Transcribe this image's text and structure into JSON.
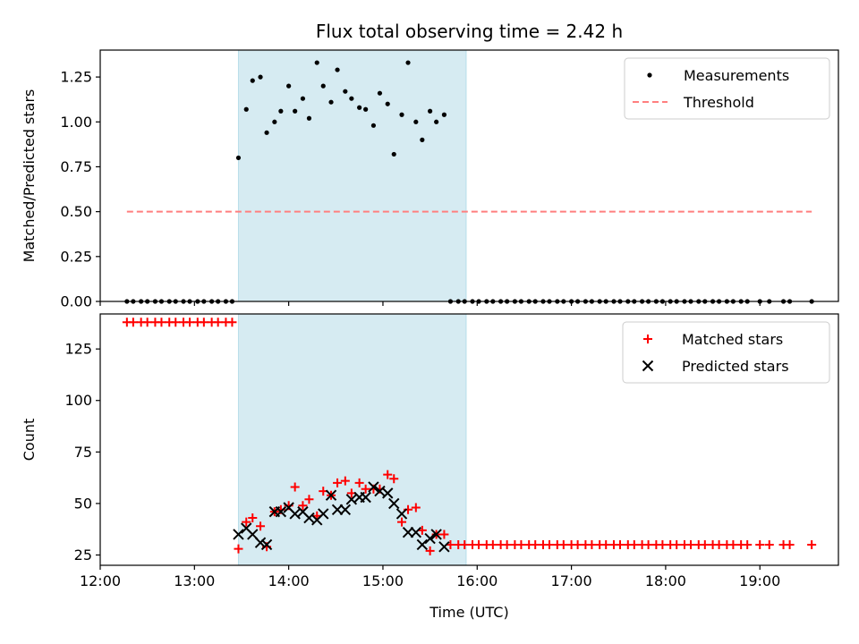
{
  "chart_data": [
    {
      "type": "scatter",
      "title": "Flux total observing time = 2.42 h",
      "xlabel": "",
      "ylabel": "Matched/Predicted stars",
      "xlim": [
        "12:00",
        "19:50"
      ],
      "ylim": [
        0,
        1.4
      ],
      "xticks": [
        "12:00",
        "13:00",
        "14:00",
        "15:00",
        "16:00",
        "17:00",
        "18:00",
        "19:00"
      ],
      "yticks": [
        "0.00",
        "0.25",
        "0.50",
        "0.75",
        "1.00",
        "1.25"
      ],
      "shaded_span": [
        "13:28",
        "15:53"
      ],
      "legend_position": "top-right",
      "colors": {
        "measurements": "#000000",
        "threshold": "#ff7f7f",
        "shade": "#add8e6"
      },
      "series": [
        {
          "name": "Measurements",
          "marker": "dot",
          "points": [
            [
              "12:17",
              0
            ],
            [
              "12:21",
              0
            ],
            [
              "12:26",
              0
            ],
            [
              "12:30",
              0
            ],
            [
              "12:35",
              0
            ],
            [
              "12:39",
              0
            ],
            [
              "12:44",
              0
            ],
            [
              "12:48",
              0
            ],
            [
              "12:53",
              0
            ],
            [
              "12:57",
              0
            ],
            [
              "13:02",
              0
            ],
            [
              "13:06",
              0
            ],
            [
              "13:11",
              0
            ],
            [
              "13:15",
              0
            ],
            [
              "13:20",
              0
            ],
            [
              "13:24",
              0
            ],
            [
              "13:28",
              0.8
            ],
            [
              "13:33",
              1.07
            ],
            [
              "13:37",
              1.23
            ],
            [
              "13:42",
              1.25
            ],
            [
              "13:46",
              0.94
            ],
            [
              "13:51",
              1.0
            ],
            [
              "13:55",
              1.06
            ],
            [
              "14:00",
              1.2
            ],
            [
              "14:04",
              1.06
            ],
            [
              "14:09",
              1.13
            ],
            [
              "14:13",
              1.02
            ],
            [
              "14:18",
              1.33
            ],
            [
              "14:22",
              1.2
            ],
            [
              "14:27",
              1.11
            ],
            [
              "14:31",
              1.29
            ],
            [
              "14:36",
              1.17
            ],
            [
              "14:40",
              1.13
            ],
            [
              "14:45",
              1.08
            ],
            [
              "14:49",
              1.07
            ],
            [
              "14:54",
              0.98
            ],
            [
              "14:58",
              1.16
            ],
            [
              "15:03",
              1.1
            ],
            [
              "15:07",
              0.82
            ],
            [
              "15:12",
              1.04
            ],
            [
              "15:16",
              1.33
            ],
            [
              "15:21",
              1.0
            ],
            [
              "15:25",
              0.9
            ],
            [
              "15:30",
              1.06
            ],
            [
              "15:34",
              1.0
            ],
            [
              "15:39",
              1.04
            ],
            [
              "15:43",
              0
            ],
            [
              "15:48",
              0
            ],
            [
              "15:52",
              0
            ],
            [
              "15:57",
              0
            ],
            [
              "16:01",
              0
            ],
            [
              "16:06",
              0
            ],
            [
              "16:10",
              0
            ],
            [
              "16:15",
              0
            ],
            [
              "16:19",
              0
            ],
            [
              "16:24",
              0
            ],
            [
              "16:28",
              0
            ],
            [
              "16:33",
              0
            ],
            [
              "16:37",
              0
            ],
            [
              "16:42",
              0
            ],
            [
              "16:46",
              0
            ],
            [
              "16:51",
              0
            ],
            [
              "16:55",
              0
            ],
            [
              "17:00",
              0
            ],
            [
              "17:04",
              0
            ],
            [
              "17:09",
              0
            ],
            [
              "17:13",
              0
            ],
            [
              "17:18",
              0
            ],
            [
              "17:22",
              0
            ],
            [
              "17:27",
              0
            ],
            [
              "17:31",
              0
            ],
            [
              "17:36",
              0
            ],
            [
              "17:40",
              0
            ],
            [
              "17:45",
              0
            ],
            [
              "17:49",
              0
            ],
            [
              "17:54",
              0
            ],
            [
              "17:58",
              0
            ],
            [
              "18:03",
              0
            ],
            [
              "18:07",
              0
            ],
            [
              "18:12",
              0
            ],
            [
              "18:16",
              0
            ],
            [
              "18:21",
              0
            ],
            [
              "18:25",
              0
            ],
            [
              "18:30",
              0
            ],
            [
              "18:34",
              0
            ],
            [
              "18:39",
              0
            ],
            [
              "18:43",
              0
            ],
            [
              "18:48",
              0
            ],
            [
              "18:52",
              0
            ],
            [
              "19:00",
              0
            ],
            [
              "19:06",
              0
            ],
            [
              "19:15",
              0
            ],
            [
              "19:19",
              0
            ],
            [
              "19:33",
              0
            ]
          ]
        },
        {
          "name": "Threshold",
          "style": "dashed",
          "points": [
            [
              "12:17",
              0.5
            ],
            [
              "19:33",
              0.5
            ]
          ]
        }
      ]
    },
    {
      "type": "scatter",
      "title": "",
      "xlabel": "Time (UTC)",
      "ylabel": "Count",
      "xlim": [
        "12:00",
        "19:50"
      ],
      "ylim": [
        20,
        142
      ],
      "xticks": [
        "12:00",
        "13:00",
        "14:00",
        "15:00",
        "16:00",
        "17:00",
        "18:00",
        "19:00"
      ],
      "yticks": [
        "25",
        "50",
        "75",
        "100",
        "125"
      ],
      "shaded_span": [
        "13:28",
        "15:53"
      ],
      "legend_position": "top-right",
      "colors": {
        "matched": "#ff0000",
        "predicted": "#000000",
        "shade": "#add8e6"
      },
      "series": [
        {
          "name": "Matched stars",
          "marker": "plus",
          "points": [
            [
              "12:17",
              138
            ],
            [
              "12:21",
              138
            ],
            [
              "12:26",
              138
            ],
            [
              "12:30",
              138
            ],
            [
              "12:35",
              138
            ],
            [
              "12:39",
              138
            ],
            [
              "12:44",
              138
            ],
            [
              "12:48",
              138
            ],
            [
              "12:53",
              138
            ],
            [
              "12:57",
              138
            ],
            [
              "13:02",
              138
            ],
            [
              "13:06",
              138
            ],
            [
              "13:11",
              138
            ],
            [
              "13:15",
              138
            ],
            [
              "13:20",
              138
            ],
            [
              "13:24",
              138
            ],
            [
              "13:28",
              28
            ],
            [
              "13:33",
              41
            ],
            [
              "13:37",
              43
            ],
            [
              "13:42",
              39
            ],
            [
              "13:46",
              29
            ],
            [
              "13:51",
              46
            ],
            [
              "13:55",
              47
            ],
            [
              "14:00",
              49
            ],
            [
              "14:04",
              58
            ],
            [
              "14:09",
              49
            ],
            [
              "14:13",
              52
            ],
            [
              "14:18",
              44
            ],
            [
              "14:22",
              56
            ],
            [
              "14:27",
              54
            ],
            [
              "14:31",
              60
            ],
            [
              "14:36",
              61
            ],
            [
              "14:40",
              55
            ],
            [
              "14:45",
              60
            ],
            [
              "14:49",
              57
            ],
            [
              "14:54",
              57
            ],
            [
              "14:58",
              57
            ],
            [
              "15:03",
              64
            ],
            [
              "15:07",
              62
            ],
            [
              "15:12",
              41
            ],
            [
              "15:16",
              47
            ],
            [
              "15:21",
              48
            ],
            [
              "15:25",
              37
            ],
            [
              "15:30",
              27
            ],
            [
              "15:34",
              35
            ],
            [
              "15:39",
              35
            ],
            [
              "15:43",
              30
            ],
            [
              "15:48",
              30
            ],
            [
              "15:52",
              30
            ],
            [
              "15:57",
              30
            ],
            [
              "16:01",
              30
            ],
            [
              "16:06",
              30
            ],
            [
              "16:10",
              30
            ],
            [
              "16:15",
              30
            ],
            [
              "16:19",
              30
            ],
            [
              "16:24",
              30
            ],
            [
              "16:28",
              30
            ],
            [
              "16:33",
              30
            ],
            [
              "16:37",
              30
            ],
            [
              "16:42",
              30
            ],
            [
              "16:46",
              30
            ],
            [
              "16:51",
              30
            ],
            [
              "16:55",
              30
            ],
            [
              "17:00",
              30
            ],
            [
              "17:04",
              30
            ],
            [
              "17:09",
              30
            ],
            [
              "17:13",
              30
            ],
            [
              "17:18",
              30
            ],
            [
              "17:22",
              30
            ],
            [
              "17:27",
              30
            ],
            [
              "17:31",
              30
            ],
            [
              "17:36",
              30
            ],
            [
              "17:40",
              30
            ],
            [
              "17:45",
              30
            ],
            [
              "17:49",
              30
            ],
            [
              "17:54",
              30
            ],
            [
              "17:58",
              30
            ],
            [
              "18:03",
              30
            ],
            [
              "18:07",
              30
            ],
            [
              "18:12",
              30
            ],
            [
              "18:16",
              30
            ],
            [
              "18:21",
              30
            ],
            [
              "18:25",
              30
            ],
            [
              "18:30",
              30
            ],
            [
              "18:34",
              30
            ],
            [
              "18:39",
              30
            ],
            [
              "18:43",
              30
            ],
            [
              "18:48",
              30
            ],
            [
              "18:52",
              30
            ],
            [
              "19:00",
              30
            ],
            [
              "19:06",
              30
            ],
            [
              "19:15",
              30
            ],
            [
              "19:19",
              30
            ],
            [
              "19:33",
              30
            ]
          ]
        },
        {
          "name": "Predicted stars",
          "marker": "x",
          "points": [
            [
              "13:28",
              35
            ],
            [
              "13:33",
              38
            ],
            [
              "13:37",
              35
            ],
            [
              "13:42",
              31
            ],
            [
              "13:46",
              30
            ],
            [
              "13:51",
              46
            ],
            [
              "13:55",
              46
            ],
            [
              "14:00",
              48
            ],
            [
              "14:04",
              45
            ],
            [
              "14:09",
              46
            ],
            [
              "14:13",
              43
            ],
            [
              "14:18",
              42
            ],
            [
              "14:22",
              45
            ],
            [
              "14:27",
              54
            ],
            [
              "14:31",
              47
            ],
            [
              "14:36",
              47
            ],
            [
              "14:40",
              52
            ],
            [
              "14:45",
              53
            ],
            [
              "14:49",
              53
            ],
            [
              "14:54",
              58
            ],
            [
              "14:58",
              56
            ],
            [
              "15:03",
              55
            ],
            [
              "15:07",
              50
            ],
            [
              "15:12",
              45
            ],
            [
              "15:16",
              36
            ],
            [
              "15:21",
              36
            ],
            [
              "15:25",
              30
            ],
            [
              "15:30",
              33
            ],
            [
              "15:34",
              35
            ],
            [
              "15:39",
              29
            ]
          ]
        }
      ]
    }
  ]
}
